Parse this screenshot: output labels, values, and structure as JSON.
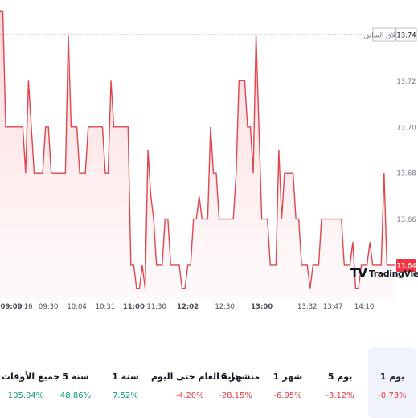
{
  "chart_data": {
    "type": "area",
    "ylim": [
      13.625,
      13.755
    ],
    "grid": false,
    "legend": "",
    "line_color": "#e0464f",
    "fill_color": "#fde3e4",
    "prev_close": {
      "label": "الإغلاق السابق",
      "value": 13.74
    },
    "last_price": 13.64,
    "y_ticks": [
      13.72,
      13.7,
      13.68,
      13.66
    ],
    "x_ticks": [
      "09:00",
      "09:16",
      "09:30",
      "10:04",
      "10:31",
      "11:00",
      "11:30",
      "12:02",
      "12:30",
      "13:00",
      "13:32",
      "13:47",
      "14:10"
    ],
    "y": [
      13.75,
      13.75,
      13.7,
      13.7,
      13.7,
      13.7,
      13.7,
      13.7,
      13.7,
      13.68,
      13.72,
      13.7,
      13.68,
      13.68,
      13.68,
      13.68,
      13.7,
      13.7,
      13.68,
      13.68,
      13.68,
      13.68,
      13.68,
      13.68,
      13.74,
      13.7,
      13.7,
      13.7,
      13.68,
      13.68,
      13.68,
      13.7,
      13.7,
      13.7,
      13.7,
      13.7,
      13.7,
      13.68,
      13.68,
      13.72,
      13.7,
      13.7,
      13.7,
      13.7,
      13.7,
      13.7,
      13.64,
      13.64,
      13.63,
      13.63,
      13.64,
      13.63,
      13.69,
      13.67,
      13.66,
      13.64,
      13.64,
      13.64,
      13.66,
      13.66,
      13.64,
      13.64,
      13.64,
      13.64,
      13.63,
      13.63,
      13.64,
      13.64,
      13.66,
      13.66,
      13.67,
      13.66,
      13.66,
      13.66,
      13.7,
      13.68,
      13.68,
      13.66,
      13.66,
      13.66,
      13.66,
      13.66,
      13.66,
      13.68,
      13.72,
      13.72,
      13.72,
      13.7,
      13.7,
      13.68,
      13.74,
      13.7,
      13.66,
      13.66,
      13.66,
      13.64,
      13.64,
      13.64,
      13.69,
      13.66,
      13.68,
      13.68,
      13.68,
      13.68,
      13.66,
      13.66,
      13.64,
      13.64,
      13.64,
      13.63,
      13.64,
      13.64,
      13.64,
      13.66,
      13.66,
      13.66,
      13.66,
      13.66,
      13.66,
      13.66,
      13.66,
      13.64,
      13.64,
      13.64,
      13.65,
      13.63,
      13.63,
      13.64,
      13.64,
      13.64,
      13.65,
      13.64,
      13.64,
      13.64,
      13.64,
      13.68,
      13.64,
      13.64,
      13.64,
      13.64
    ]
  },
  "periods": [
    {
      "label": "1 يوم",
      "value": "-0.73%",
      "trend": "down",
      "active": true
    },
    {
      "label": "5 يوم",
      "value": "-3.12%",
      "trend": "down",
      "active": false
    },
    {
      "label": "1 شهر",
      "value": "-6.95%",
      "trend": "down",
      "active": false
    },
    {
      "label": "6 شهر",
      "value": "-28.15%",
      "trend": "down",
      "active": false
    },
    {
      "label": "منذ بداية العام حتى اليوم",
      "value": "-4.20%",
      "trend": "down",
      "active": false
    },
    {
      "label": "1 سنة",
      "value": "7.52%",
      "trend": "up",
      "active": false
    },
    {
      "label": "5 سنة",
      "value": "48.86%",
      "trend": "up",
      "active": false
    },
    {
      "label": "جميع الأوقات",
      "value": "105.04%",
      "trend": "up",
      "active": false
    }
  ],
  "colors": {
    "up": "#089981",
    "down": "#f23645",
    "badge": "#f23645",
    "axis_text": "#787b86"
  },
  "branding": {
    "mark": "TV",
    "word": "TradingView"
  }
}
